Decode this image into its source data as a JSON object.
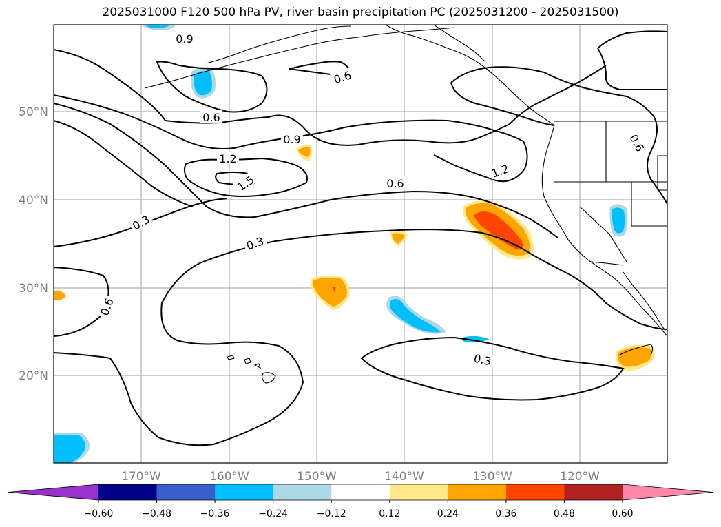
{
  "title": "2025031000 F120 500 hPa PV, river basin precipitation PC (2025031200 - 2025031500)",
  "map": {
    "lat_labels": [
      "50°N",
      "40°N",
      "30°N",
      "20°N"
    ],
    "lon_labels": [
      "170°W",
      "160°W",
      "150°W",
      "140°W",
      "130°W",
      "120°W"
    ],
    "contour_labels": [
      "0.9",
      "0.6",
      "0.6",
      "0.9",
      "1.2",
      "1.5",
      "1.2",
      "0.6",
      "0.3",
      "0.3",
      "0.6",
      "0.3",
      "0.6"
    ],
    "land_color": "#ffffff",
    "coast_color": "#000000",
    "grid_color": "#b0b0b0"
  },
  "colorbar": {
    "ticks": [
      "−0.60",
      "−0.48",
      "−0.36",
      "−0.24",
      "−0.12",
      "0.12",
      "0.24",
      "0.36",
      "0.48",
      "0.60"
    ],
    "colors": [
      "#9932cc",
      "#00008b",
      "#3a5fcd",
      "#00bfff",
      "#add8e6",
      "#ffffff",
      "#ffe88a",
      "#ffa500",
      "#ff4500",
      "#b22222",
      "#ff88aa"
    ]
  }
}
